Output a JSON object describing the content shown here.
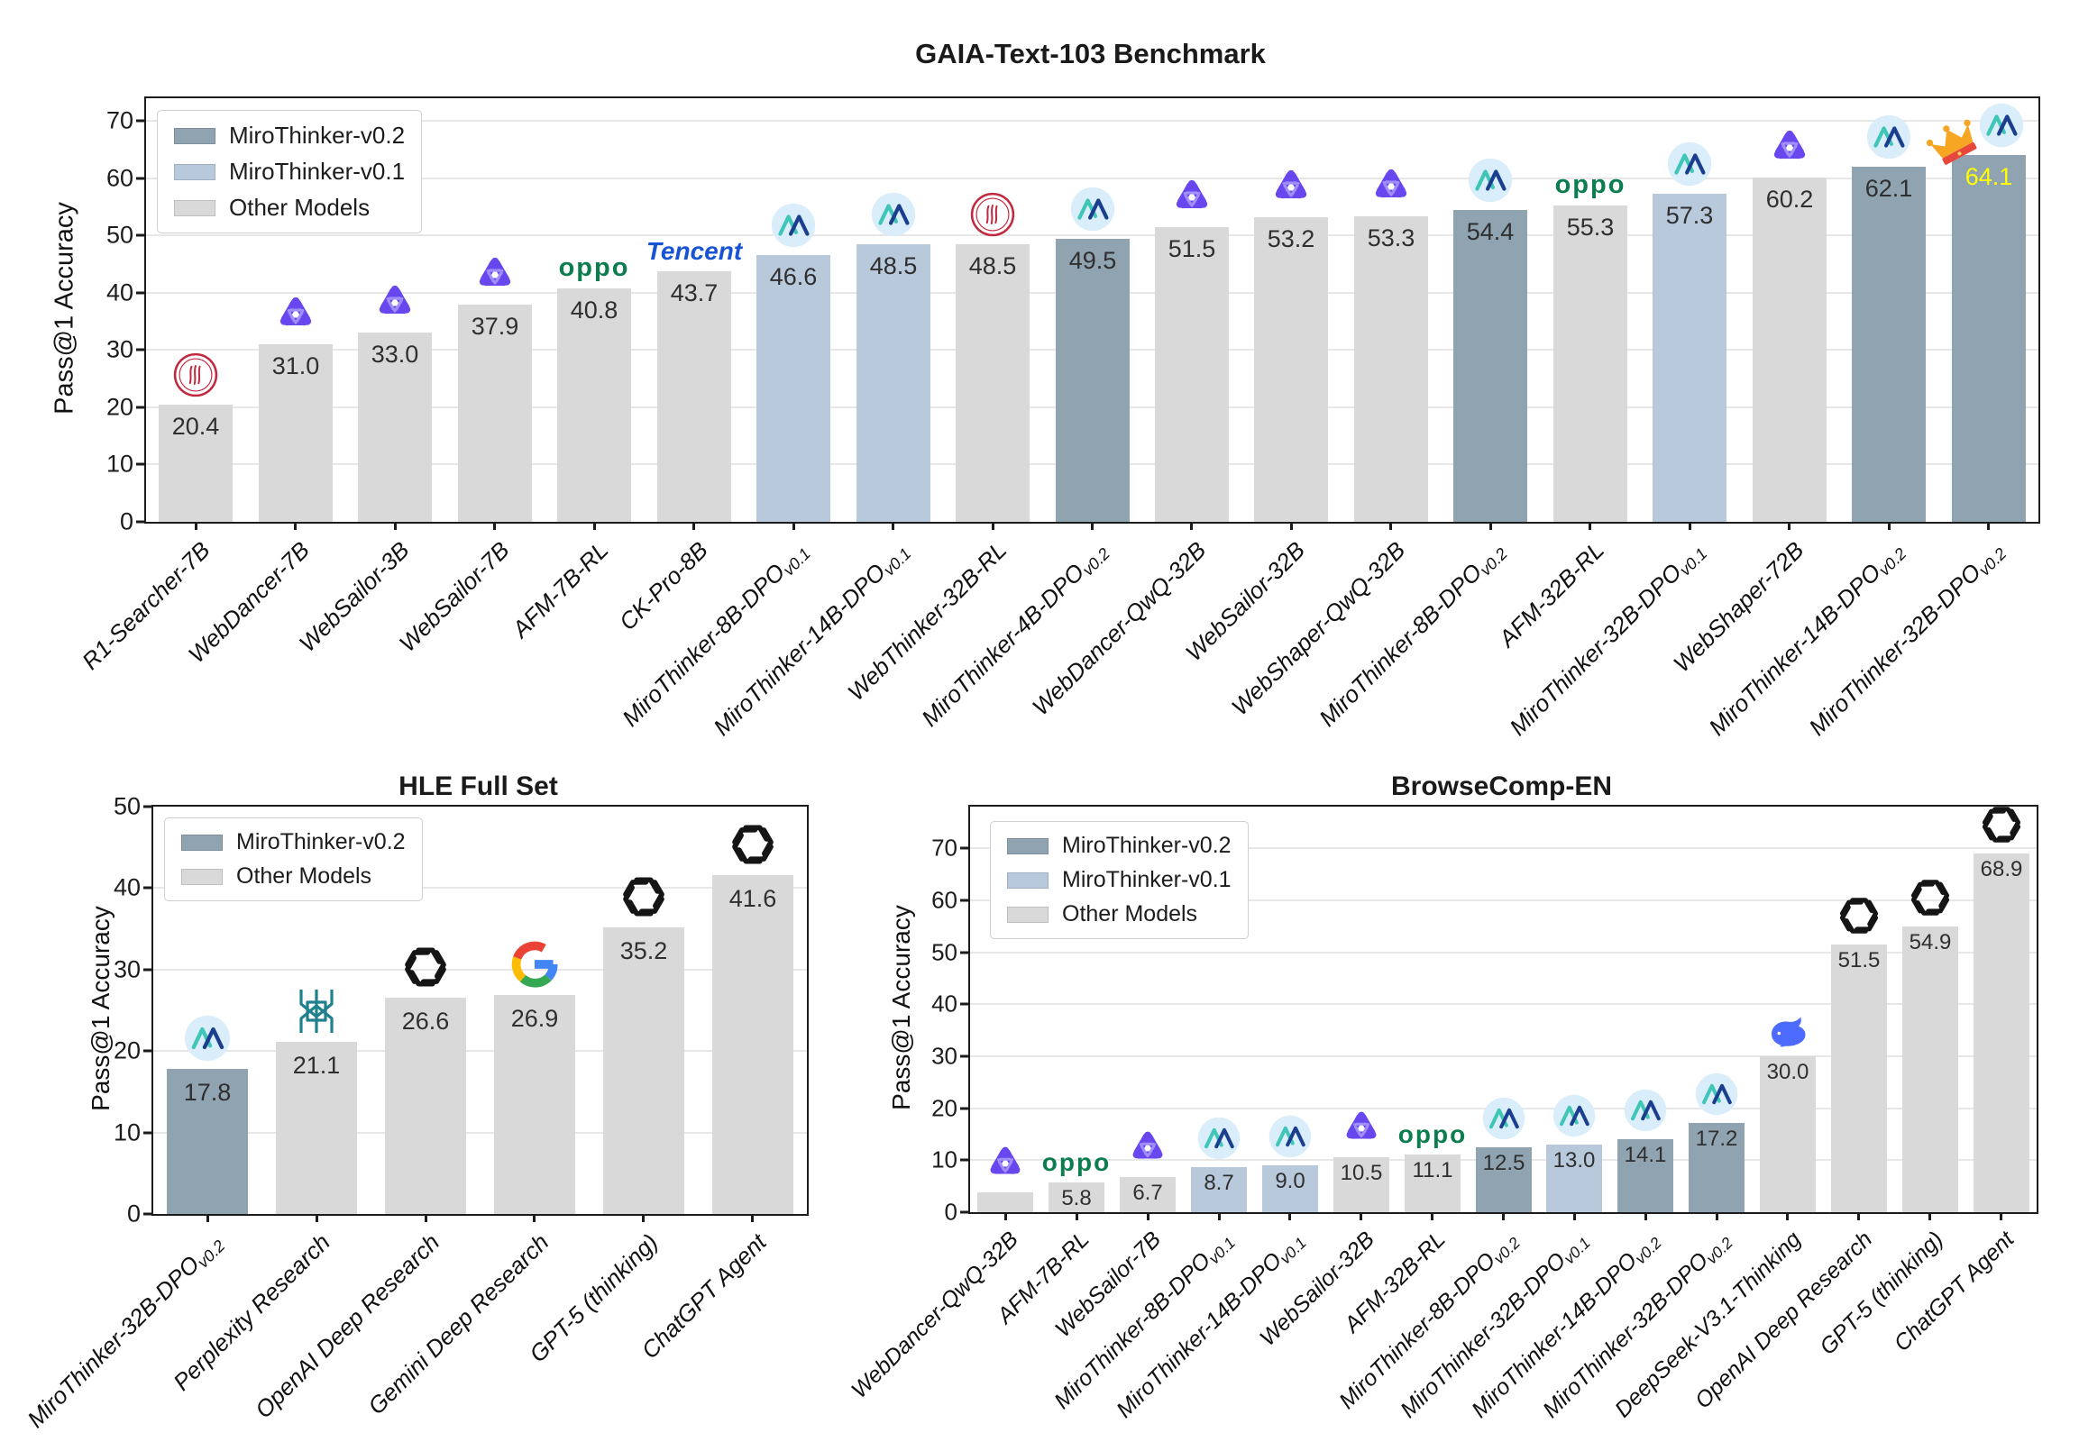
{
  "colors": {
    "group_colors": {
      "v0.2": "#8fa3b1",
      "v0.1": "#b7c9db",
      "other": "#d9d9d9"
    },
    "value_label": "#2f2f2f",
    "highlight_value": "#ffff00",
    "grid": "#e7e7e7",
    "axis": "#1c1c1c",
    "miro_teal": "#3fc6b7",
    "miro_navy": "#1b3f8e",
    "miro_circle": "#d9edfa",
    "tongyi_purple": "#6847ef",
    "tongyi_light": "#a08ffa",
    "ruc_red": "#c2293f",
    "oppo_green": "#0b7d4e",
    "tencent_blue": "#1753d3",
    "openai_black": "#151515",
    "google_blue": "#4285f4",
    "google_red": "#ea4335",
    "google_yellow": "#fbbc05",
    "google_green": "#34a853",
    "perplexity_teal": "#20808d",
    "deepseek_blue": "#4d6bfe",
    "crown_gold": "#f6a623",
    "crown_band": "#e8483b"
  },
  "logos": {
    "oppo": "oppo",
    "tencent": "Tencent"
  },
  "chart_data": [
    {
      "id": "gaia",
      "type": "bar",
      "title": "GAIA-Text-103 Benchmark",
      "ylabel": "Pass@1 Accuracy",
      "ylim": [
        0,
        74
      ],
      "yticks": [
        0,
        10,
        20,
        30,
        40,
        50,
        60,
        70
      ],
      "grid": true,
      "legend_position": "upper-left",
      "legend": [
        {
          "label": "MiroThinker-v0.2",
          "group": "v0.2"
        },
        {
          "label": "MiroThinker-v0.1",
          "group": "v0.1"
        },
        {
          "label": "Other Models",
          "group": "other"
        }
      ],
      "bars": [
        {
          "label": "R1-Searcher-7B",
          "sub": "",
          "value": 20.4,
          "value_label": "20.4",
          "group": "other",
          "icon": "ruc"
        },
        {
          "label": "WebDancer-7B",
          "sub": "",
          "value": 31.0,
          "value_label": "31.0",
          "group": "other",
          "icon": "tongyi"
        },
        {
          "label": "WebSailor-3B",
          "sub": "",
          "value": 33.0,
          "value_label": "33.0",
          "group": "other",
          "icon": "tongyi"
        },
        {
          "label": "WebSailor-7B",
          "sub": "",
          "value": 37.9,
          "value_label": "37.9",
          "group": "other",
          "icon": "tongyi"
        },
        {
          "label": "AFM-7B-RL",
          "sub": "",
          "value": 40.8,
          "value_label": "40.8",
          "group": "other",
          "icon": "oppo"
        },
        {
          "label": "CK-Pro-8B",
          "sub": "",
          "value": 43.7,
          "value_label": "43.7",
          "group": "other",
          "icon": "tencent"
        },
        {
          "label": "MiroThinker-8B-DPO",
          "sub": "v0.1",
          "value": 46.6,
          "value_label": "46.6",
          "group": "v0.1",
          "icon": "miro"
        },
        {
          "label": "MiroThinker-14B-DPO",
          "sub": "v0.1",
          "value": 48.5,
          "value_label": "48.5",
          "group": "v0.1",
          "icon": "miro"
        },
        {
          "label": "WebThinker-32B-RL",
          "sub": "",
          "value": 48.5,
          "value_label": "48.5",
          "group": "other",
          "icon": "ruc"
        },
        {
          "label": "MiroThinker-4B-DPO",
          "sub": "v0.2",
          "value": 49.5,
          "value_label": "49.5",
          "group": "v0.2",
          "icon": "miro"
        },
        {
          "label": "WebDancer-QwQ-32B",
          "sub": "",
          "value": 51.5,
          "value_label": "51.5",
          "group": "other",
          "icon": "tongyi"
        },
        {
          "label": "WebSailor-32B",
          "sub": "",
          "value": 53.2,
          "value_label": "53.2",
          "group": "other",
          "icon": "tongyi"
        },
        {
          "label": "WebShaper-QwQ-32B",
          "sub": "",
          "value": 53.3,
          "value_label": "53.3",
          "group": "other",
          "icon": "tongyi"
        },
        {
          "label": "MiroThinker-8B-DPO",
          "sub": "v0.2",
          "value": 54.4,
          "value_label": "54.4",
          "group": "v0.2",
          "icon": "miro"
        },
        {
          "label": "AFM-32B-RL",
          "sub": "",
          "value": 55.3,
          "value_label": "55.3",
          "group": "other",
          "icon": "oppo"
        },
        {
          "label": "MiroThinker-32B-DPO",
          "sub": "v0.1",
          "value": 57.3,
          "value_label": "57.3",
          "group": "v0.1",
          "icon": "miro"
        },
        {
          "label": "WebShaper-72B",
          "sub": "",
          "value": 60.2,
          "value_label": "60.2",
          "group": "other",
          "icon": "tongyi"
        },
        {
          "label": "MiroThinker-14B-DPO",
          "sub": "v0.2",
          "value": 62.1,
          "value_label": "62.1",
          "group": "v0.2",
          "icon": "miro"
        },
        {
          "label": "MiroThinker-32B-DPO",
          "sub": "v0.2",
          "value": 64.1,
          "value_label": "64.1",
          "group": "v0.2",
          "icon": "miro",
          "crown": true,
          "value_color": "#ffff00"
        }
      ]
    },
    {
      "id": "hle",
      "type": "bar",
      "title": "HLE Full Set",
      "ylabel": "Pass@1 Accuracy",
      "ylim": [
        0,
        50
      ],
      "yticks": [
        0,
        10,
        20,
        30,
        40,
        50
      ],
      "grid": true,
      "legend_position": "upper-left",
      "legend": [
        {
          "label": "MiroThinker-v0.2",
          "group": "v0.2"
        },
        {
          "label": "Other Models",
          "group": "other"
        }
      ],
      "bars": [
        {
          "label": "MiroThinker-32B-DPO",
          "sub": "v0.2",
          "value": 17.8,
          "value_label": "17.8",
          "group": "v0.2",
          "icon": "miro"
        },
        {
          "label": "Perplexity Research",
          "sub": "",
          "value": 21.1,
          "value_label": "21.1",
          "group": "other",
          "icon": "perplexity"
        },
        {
          "label": "OpenAI Deep Research",
          "sub": "",
          "value": 26.6,
          "value_label": "26.6",
          "group": "other",
          "icon": "openai"
        },
        {
          "label": "Gemini Deep Research",
          "sub": "",
          "value": 26.9,
          "value_label": "26.9",
          "group": "other",
          "icon": "google"
        },
        {
          "label": "GPT-5 (thinking)",
          "sub": "",
          "value": 35.2,
          "value_label": "35.2",
          "group": "other",
          "icon": "openai"
        },
        {
          "label": "ChatGPT Agent",
          "sub": "",
          "value": 41.6,
          "value_label": "41.6",
          "group": "other",
          "icon": "openai"
        }
      ]
    },
    {
      "id": "browsecomp",
      "type": "bar",
      "title": "BrowseComp-EN",
      "ylabel": "Pass@1 Accuracy",
      "ylim": [
        0,
        78
      ],
      "yticks": [
        0,
        10,
        20,
        30,
        40,
        50,
        60,
        70
      ],
      "grid": true,
      "legend_position": "upper-left",
      "legend": [
        {
          "label": "MiroThinker-v0.2",
          "group": "v0.2"
        },
        {
          "label": "MiroThinker-v0.1",
          "group": "v0.1"
        },
        {
          "label": "Other Models",
          "group": "other"
        }
      ],
      "bars": [
        {
          "label": "WebDancer-QwQ-32B",
          "sub": "",
          "value": 3.8,
          "value_label": "",
          "group": "other",
          "icon": "tongyi"
        },
        {
          "label": "AFM-7B-RL",
          "sub": "",
          "value": 5.8,
          "value_label": "5.8",
          "group": "other",
          "icon": "oppo"
        },
        {
          "label": "WebSailor-7B",
          "sub": "",
          "value": 6.7,
          "value_label": "6.7",
          "group": "other",
          "icon": "tongyi"
        },
        {
          "label": "MiroThinker-8B-DPO",
          "sub": "v0.1",
          "value": 8.7,
          "value_label": "8.7",
          "group": "v0.1",
          "icon": "miro"
        },
        {
          "label": "MiroThinker-14B-DPO",
          "sub": "v0.1",
          "value": 9.0,
          "value_label": "9.0",
          "group": "v0.1",
          "icon": "miro"
        },
        {
          "label": "WebSailor-32B",
          "sub": "",
          "value": 10.5,
          "value_label": "10.5",
          "group": "other",
          "icon": "tongyi"
        },
        {
          "label": "AFM-32B-RL",
          "sub": "",
          "value": 11.1,
          "value_label": "11.1",
          "group": "other",
          "icon": "oppo"
        },
        {
          "label": "MiroThinker-8B-DPO",
          "sub": "v0.2",
          "value": 12.5,
          "value_label": "12.5",
          "group": "v0.2",
          "icon": "miro"
        },
        {
          "label": "MiroThinker-32B-DPO",
          "sub": "v0.1",
          "value": 13.0,
          "value_label": "13.0",
          "group": "v0.1",
          "icon": "miro"
        },
        {
          "label": "MiroThinker-14B-DPO",
          "sub": "v0.2",
          "value": 14.1,
          "value_label": "14.1",
          "group": "v0.2",
          "icon": "miro"
        },
        {
          "label": "MiroThinker-32B-DPO",
          "sub": "v0.2",
          "value": 17.2,
          "value_label": "17.2",
          "group": "v0.2",
          "icon": "miro"
        },
        {
          "label": "DeepSeek-V3.1-Thinking",
          "sub": "",
          "value": 30.0,
          "value_label": "30.0",
          "group": "other",
          "icon": "deepseek"
        },
        {
          "label": "OpenAI Deep Research",
          "sub": "",
          "value": 51.5,
          "value_label": "51.5",
          "group": "other",
          "icon": "openai"
        },
        {
          "label": "GPT-5 (thinking)",
          "sub": "",
          "value": 54.9,
          "value_label": "54.9",
          "group": "other",
          "icon": "openai"
        },
        {
          "label": "ChatGPT Agent",
          "sub": "",
          "value": 68.9,
          "value_label": "68.9",
          "group": "other",
          "icon": "openai"
        }
      ]
    }
  ]
}
